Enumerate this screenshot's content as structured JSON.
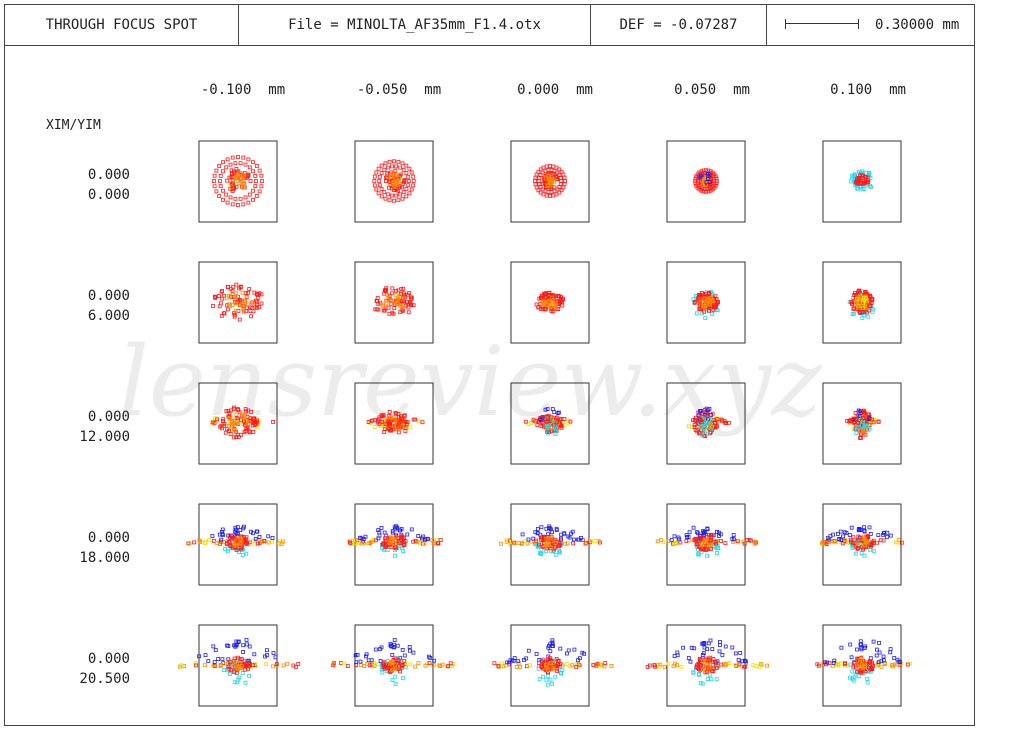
{
  "header": {
    "title": "THROUGH FOCUS SPOT",
    "file": "File = MINOLTA_AF35mm_F1.4.otx",
    "def": "DEF = -0.07287",
    "scale_label": "0.30000 mm"
  },
  "columns": [
    "-0.100  mm",
    "-0.050  mm",
    "0.000  mm",
    "0.050  mm",
    "0.100  mm"
  ],
  "row_axis_label": "XIM/YIM",
  "rows": [
    {
      "xim": "0.000",
      "yim": "0.000"
    },
    {
      "xim": "0.000",
      "yim": "6.000"
    },
    {
      "xim": "0.000",
      "yim": "12.000"
    },
    {
      "xim": "0.000",
      "yim": "18.000"
    },
    {
      "xim": "0.000",
      "yim": "20.500"
    }
  ],
  "watermark": "lensreview.xyz",
  "colors": {
    "red": "#ff1a1a",
    "orange": "#ff8c00",
    "yellow": "#e8e000",
    "cyan": "#22d8e8",
    "blue": "#2222ee",
    "frame": "#444444",
    "watermark": "#ececec"
  }
}
